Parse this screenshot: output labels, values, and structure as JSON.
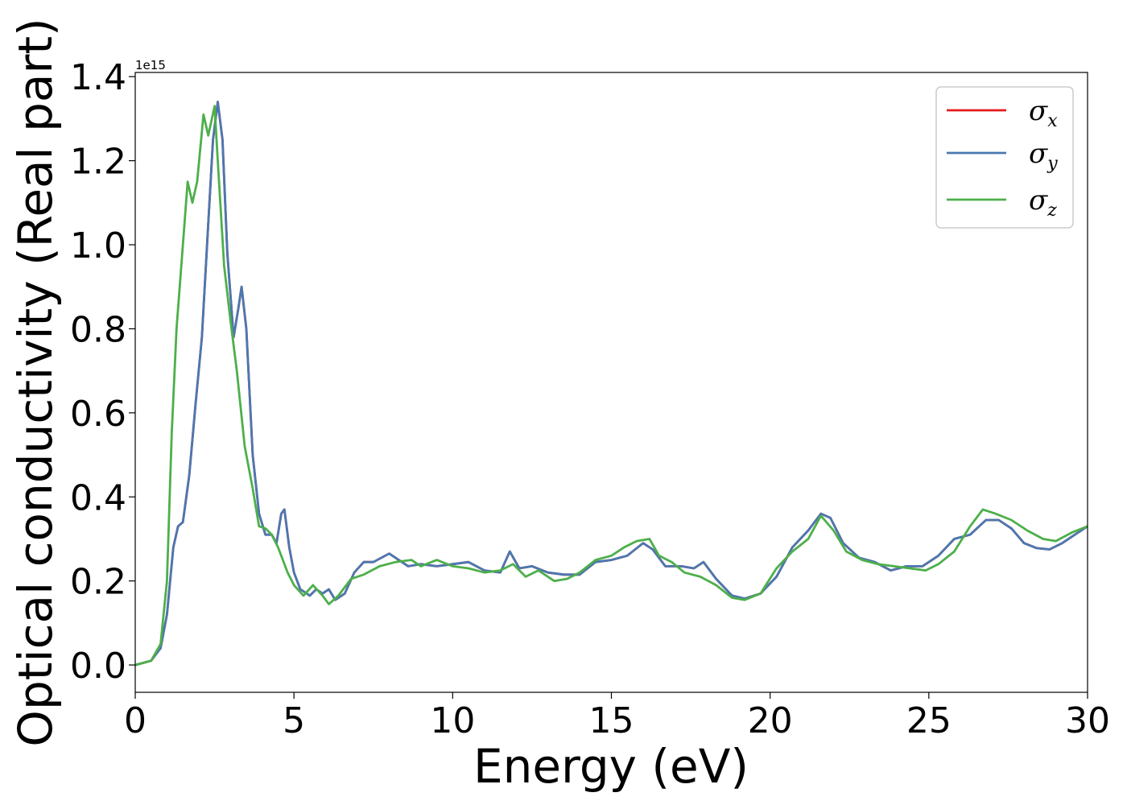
{
  "chart_data": {
    "type": "line",
    "xlabel": "Energy (eV)",
    "ylabel": "Optical conductivity (Real part)",
    "y_offset_label": "1e15",
    "xlim": [
      0,
      30
    ],
    "ylim": [
      -0.065,
      1.41
    ],
    "x_ticks": [
      0,
      5,
      10,
      15,
      20,
      25,
      30
    ],
    "x_tick_labels": [
      "0",
      "5",
      "10",
      "15",
      "20",
      "25",
      "30"
    ],
    "y_ticks": [
      0.0,
      0.2,
      0.4,
      0.6,
      0.8,
      1.0,
      1.2,
      1.4
    ],
    "y_tick_labels": [
      "0.0",
      "0.2",
      "0.4",
      "0.6",
      "0.8",
      "1.0",
      "1.2",
      "1.4"
    ],
    "grid": false,
    "legend_position": "top-right",
    "series": [
      {
        "name": "σx",
        "symbol": "σ",
        "subscript": "x",
        "color": "#e41a1c",
        "points": [
          [
            0,
            0
          ],
          [
            0.5,
            0.01
          ],
          [
            0.8,
            0.04
          ],
          [
            1.0,
            0.12
          ],
          [
            1.2,
            0.28
          ],
          [
            1.35,
            0.33
          ],
          [
            1.5,
            0.34
          ],
          [
            1.7,
            0.45
          ],
          [
            1.9,
            0.62
          ],
          [
            2.1,
            0.78
          ],
          [
            2.3,
            1.05
          ],
          [
            2.45,
            1.25
          ],
          [
            2.6,
            1.34
          ],
          [
            2.75,
            1.25
          ],
          [
            2.9,
            0.98
          ],
          [
            3.1,
            0.78
          ],
          [
            3.25,
            0.85
          ],
          [
            3.35,
            0.9
          ],
          [
            3.5,
            0.8
          ],
          [
            3.7,
            0.5
          ],
          [
            3.9,
            0.36
          ],
          [
            4.1,
            0.31
          ],
          [
            4.3,
            0.31
          ],
          [
            4.45,
            0.29
          ],
          [
            4.6,
            0.36
          ],
          [
            4.7,
            0.37
          ],
          [
            4.85,
            0.28
          ],
          [
            5.0,
            0.22
          ],
          [
            5.2,
            0.18
          ],
          [
            5.5,
            0.165
          ],
          [
            5.7,
            0.18
          ],
          [
            5.9,
            0.17
          ],
          [
            6.1,
            0.18
          ],
          [
            6.3,
            0.155
          ],
          [
            6.6,
            0.17
          ],
          [
            6.9,
            0.22
          ],
          [
            7.2,
            0.245
          ],
          [
            7.5,
            0.245
          ],
          [
            8.0,
            0.265
          ],
          [
            8.3,
            0.25
          ],
          [
            8.6,
            0.235
          ],
          [
            9.0,
            0.24
          ],
          [
            9.5,
            0.235
          ],
          [
            10.0,
            0.24
          ],
          [
            10.5,
            0.245
          ],
          [
            11.0,
            0.225
          ],
          [
            11.5,
            0.22
          ],
          [
            11.8,
            0.27
          ],
          [
            12.1,
            0.23
          ],
          [
            12.5,
            0.235
          ],
          [
            13.0,
            0.22
          ],
          [
            13.5,
            0.215
          ],
          [
            14.0,
            0.215
          ],
          [
            14.5,
            0.245
          ],
          [
            15.0,
            0.25
          ],
          [
            15.5,
            0.26
          ],
          [
            16.0,
            0.29
          ],
          [
            16.3,
            0.275
          ],
          [
            16.7,
            0.235
          ],
          [
            17.2,
            0.235
          ],
          [
            17.6,
            0.23
          ],
          [
            17.9,
            0.245
          ],
          [
            18.3,
            0.205
          ],
          [
            18.8,
            0.165
          ],
          [
            19.2,
            0.158
          ],
          [
            19.7,
            0.17
          ],
          [
            20.2,
            0.21
          ],
          [
            20.7,
            0.28
          ],
          [
            21.2,
            0.32
          ],
          [
            21.6,
            0.36
          ],
          [
            21.9,
            0.35
          ],
          [
            22.3,
            0.29
          ],
          [
            22.8,
            0.255
          ],
          [
            23.3,
            0.245
          ],
          [
            23.8,
            0.225
          ],
          [
            24.3,
            0.235
          ],
          [
            24.8,
            0.235
          ],
          [
            25.3,
            0.26
          ],
          [
            25.8,
            0.3
          ],
          [
            26.3,
            0.31
          ],
          [
            26.8,
            0.345
          ],
          [
            27.2,
            0.345
          ],
          [
            27.6,
            0.325
          ],
          [
            28.0,
            0.29
          ],
          [
            28.4,
            0.278
          ],
          [
            28.8,
            0.275
          ],
          [
            29.2,
            0.29
          ],
          [
            29.6,
            0.31
          ],
          [
            30.0,
            0.33
          ]
        ]
      },
      {
        "name": "σy",
        "symbol": "σ",
        "subscript": "y",
        "color": "#4a78b0",
        "points": [
          [
            0,
            0
          ],
          [
            0.5,
            0.01
          ],
          [
            0.8,
            0.04
          ],
          [
            1.0,
            0.12
          ],
          [
            1.2,
            0.28
          ],
          [
            1.35,
            0.33
          ],
          [
            1.5,
            0.34
          ],
          [
            1.7,
            0.45
          ],
          [
            1.9,
            0.62
          ],
          [
            2.1,
            0.78
          ],
          [
            2.3,
            1.05
          ],
          [
            2.45,
            1.25
          ],
          [
            2.6,
            1.34
          ],
          [
            2.75,
            1.25
          ],
          [
            2.9,
            0.98
          ],
          [
            3.1,
            0.78
          ],
          [
            3.25,
            0.85
          ],
          [
            3.35,
            0.9
          ],
          [
            3.5,
            0.8
          ],
          [
            3.7,
            0.5
          ],
          [
            3.9,
            0.36
          ],
          [
            4.1,
            0.31
          ],
          [
            4.3,
            0.31
          ],
          [
            4.45,
            0.29
          ],
          [
            4.6,
            0.36
          ],
          [
            4.7,
            0.37
          ],
          [
            4.85,
            0.28
          ],
          [
            5.0,
            0.22
          ],
          [
            5.2,
            0.18
          ],
          [
            5.5,
            0.165
          ],
          [
            5.7,
            0.18
          ],
          [
            5.9,
            0.17
          ],
          [
            6.1,
            0.18
          ],
          [
            6.3,
            0.155
          ],
          [
            6.6,
            0.17
          ],
          [
            6.9,
            0.22
          ],
          [
            7.2,
            0.245
          ],
          [
            7.5,
            0.245
          ],
          [
            8.0,
            0.265
          ],
          [
            8.3,
            0.25
          ],
          [
            8.6,
            0.235
          ],
          [
            9.0,
            0.24
          ],
          [
            9.5,
            0.235
          ],
          [
            10.0,
            0.24
          ],
          [
            10.5,
            0.245
          ],
          [
            11.0,
            0.225
          ],
          [
            11.5,
            0.22
          ],
          [
            11.8,
            0.27
          ],
          [
            12.1,
            0.23
          ],
          [
            12.5,
            0.235
          ],
          [
            13.0,
            0.22
          ],
          [
            13.5,
            0.215
          ],
          [
            14.0,
            0.215
          ],
          [
            14.5,
            0.245
          ],
          [
            15.0,
            0.25
          ],
          [
            15.5,
            0.26
          ],
          [
            16.0,
            0.29
          ],
          [
            16.3,
            0.275
          ],
          [
            16.7,
            0.235
          ],
          [
            17.2,
            0.235
          ],
          [
            17.6,
            0.23
          ],
          [
            17.9,
            0.245
          ],
          [
            18.3,
            0.205
          ],
          [
            18.8,
            0.165
          ],
          [
            19.2,
            0.158
          ],
          [
            19.7,
            0.17
          ],
          [
            20.2,
            0.21
          ],
          [
            20.7,
            0.28
          ],
          [
            21.2,
            0.32
          ],
          [
            21.6,
            0.36
          ],
          [
            21.9,
            0.35
          ],
          [
            22.3,
            0.29
          ],
          [
            22.8,
            0.255
          ],
          [
            23.3,
            0.245
          ],
          [
            23.8,
            0.225
          ],
          [
            24.3,
            0.235
          ],
          [
            24.8,
            0.235
          ],
          [
            25.3,
            0.26
          ],
          [
            25.8,
            0.3
          ],
          [
            26.3,
            0.31
          ],
          [
            26.8,
            0.345
          ],
          [
            27.2,
            0.345
          ],
          [
            27.6,
            0.325
          ],
          [
            28.0,
            0.29
          ],
          [
            28.4,
            0.278
          ],
          [
            28.8,
            0.275
          ],
          [
            29.2,
            0.29
          ],
          [
            29.6,
            0.31
          ],
          [
            30.0,
            0.33
          ]
        ]
      },
      {
        "name": "σz",
        "symbol": "σ",
        "subscript": "z",
        "color": "#4daf4a",
        "points": [
          [
            0,
            0
          ],
          [
            0.5,
            0.01
          ],
          [
            0.8,
            0.05
          ],
          [
            1.0,
            0.2
          ],
          [
            1.15,
            0.55
          ],
          [
            1.3,
            0.8
          ],
          [
            1.5,
            1.0
          ],
          [
            1.65,
            1.15
          ],
          [
            1.8,
            1.1
          ],
          [
            1.95,
            1.15
          ],
          [
            2.15,
            1.31
          ],
          [
            2.3,
            1.26
          ],
          [
            2.5,
            1.33
          ],
          [
            2.6,
            1.2
          ],
          [
            2.8,
            0.95
          ],
          [
            3.0,
            0.82
          ],
          [
            3.2,
            0.7
          ],
          [
            3.45,
            0.52
          ],
          [
            3.7,
            0.42
          ],
          [
            3.9,
            0.33
          ],
          [
            4.1,
            0.325
          ],
          [
            4.3,
            0.31
          ],
          [
            4.5,
            0.28
          ],
          [
            4.8,
            0.22
          ],
          [
            5.0,
            0.19
          ],
          [
            5.3,
            0.165
          ],
          [
            5.6,
            0.19
          ],
          [
            5.9,
            0.165
          ],
          [
            6.1,
            0.145
          ],
          [
            6.4,
            0.165
          ],
          [
            6.8,
            0.205
          ],
          [
            7.2,
            0.215
          ],
          [
            7.7,
            0.235
          ],
          [
            8.2,
            0.245
          ],
          [
            8.7,
            0.25
          ],
          [
            9.0,
            0.235
          ],
          [
            9.5,
            0.25
          ],
          [
            10.0,
            0.235
          ],
          [
            10.5,
            0.23
          ],
          [
            11.0,
            0.22
          ],
          [
            11.5,
            0.225
          ],
          [
            11.9,
            0.24
          ],
          [
            12.3,
            0.21
          ],
          [
            12.7,
            0.225
          ],
          [
            13.2,
            0.2
          ],
          [
            13.6,
            0.205
          ],
          [
            14.0,
            0.22
          ],
          [
            14.5,
            0.25
          ],
          [
            15.0,
            0.26
          ],
          [
            15.4,
            0.28
          ],
          [
            15.8,
            0.295
          ],
          [
            16.2,
            0.3
          ],
          [
            16.5,
            0.26
          ],
          [
            16.9,
            0.245
          ],
          [
            17.3,
            0.22
          ],
          [
            17.8,
            0.21
          ],
          [
            18.3,
            0.19
          ],
          [
            18.8,
            0.16
          ],
          [
            19.2,
            0.155
          ],
          [
            19.7,
            0.17
          ],
          [
            20.2,
            0.23
          ],
          [
            20.7,
            0.27
          ],
          [
            21.2,
            0.3
          ],
          [
            21.6,
            0.355
          ],
          [
            22.0,
            0.32
          ],
          [
            22.4,
            0.27
          ],
          [
            22.9,
            0.25
          ],
          [
            23.4,
            0.24
          ],
          [
            23.9,
            0.235
          ],
          [
            24.4,
            0.23
          ],
          [
            24.9,
            0.225
          ],
          [
            25.3,
            0.24
          ],
          [
            25.8,
            0.27
          ],
          [
            26.3,
            0.33
          ],
          [
            26.7,
            0.37
          ],
          [
            27.1,
            0.36
          ],
          [
            27.6,
            0.345
          ],
          [
            28.1,
            0.32
          ],
          [
            28.6,
            0.3
          ],
          [
            29.0,
            0.295
          ],
          [
            29.5,
            0.315
          ],
          [
            30.0,
            0.33
          ]
        ]
      }
    ]
  }
}
